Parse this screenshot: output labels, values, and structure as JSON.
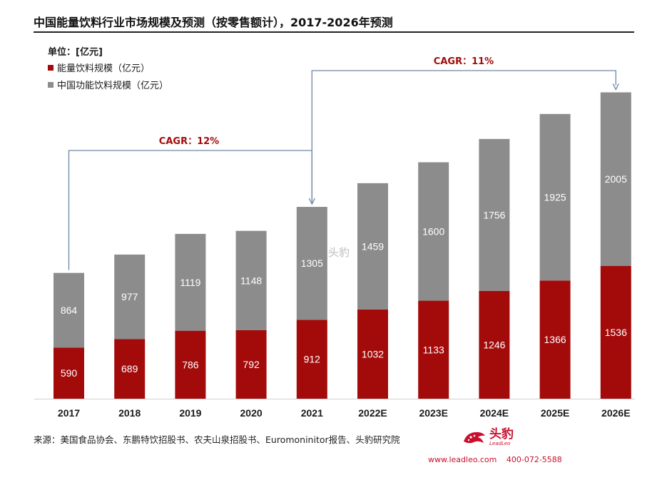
{
  "title": "中国能量饮料行业市场规模及预测（按零售额计），2017-2026年预测",
  "unit_label": "单位：[亿元]",
  "source": "来源：美国食品协会、东鹏特饮招股书、农夫山泉招股书、Euromoninitor报告、头豹研究院",
  "watermark": "头豹",
  "logo": {
    "cn": "头豹",
    "en": "LeadLeo"
  },
  "contact": {
    "web": "www.leadleo.com",
    "phone": "400-072-5588"
  },
  "chart_data": {
    "type": "bar",
    "stacked": true,
    "categories": [
      "2017",
      "2018",
      "2019",
      "2020",
      "2021",
      "2022E",
      "2023E",
      "2024E",
      "2025E",
      "2026E"
    ],
    "series": [
      {
        "name": "能量饮料规模（亿元）",
        "color": "#a30b0b",
        "values": [
          590,
          689,
          786,
          792,
          912,
          1032,
          1133,
          1246,
          1366,
          1536
        ]
      },
      {
        "name": "中国功能饮料规模（亿元）",
        "color": "#8c8c8c",
        "values": [
          864,
          977,
          1119,
          1148,
          1305,
          1459,
          1600,
          1756,
          1925,
          2005
        ]
      }
    ],
    "annotations": [
      {
        "text": "CAGR：12%",
        "from": "2017",
        "to": "2021"
      },
      {
        "text": "CAGR：11%",
        "from": "2021",
        "to": "2026E"
      }
    ],
    "ylim": [
      0,
      3600
    ],
    "grid": false,
    "legend_position": "top-left"
  }
}
